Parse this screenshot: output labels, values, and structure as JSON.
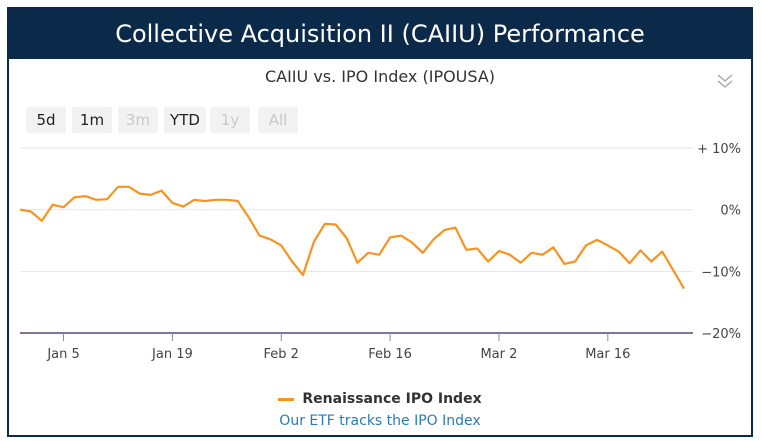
{
  "header": {
    "title": "Collective Acquisition II (CAIIU) Performance"
  },
  "range_buttons": [
    {
      "label": "5d",
      "enabled": true
    },
    {
      "label": "1m",
      "enabled": true
    },
    {
      "label": "3m",
      "enabled": false
    },
    {
      "label": "YTD",
      "enabled": true
    },
    {
      "label": "1y",
      "enabled": false
    },
    {
      "label": "All",
      "enabled": false
    }
  ],
  "icons": {
    "menu": "chevron-double-down-icon"
  },
  "colors": {
    "header_bg": "#0b2a4a",
    "series": "#f7931e",
    "link": "#2a7ab8",
    "baseline": "#3b1f5a"
  },
  "footer": {
    "link_text": "Our ETF tracks the IPO Index"
  },
  "chart_data": {
    "type": "line",
    "title": "CAIIU vs. IPO Index (IPOUSA)",
    "xlabel": "",
    "ylabel": "",
    "y_ticks": [
      10,
      0,
      -10,
      -20
    ],
    "y_tick_labels": [
      "+ 10%",
      "0%",
      "−10%",
      "−20%"
    ],
    "ylim": [
      -20,
      10
    ],
    "x_ticks": [
      {
        "label": "Jan 5",
        "index": 4
      },
      {
        "label": "Jan 19",
        "index": 14
      },
      {
        "label": "Feb 2",
        "index": 24
      },
      {
        "label": "Feb 16",
        "index": 34
      },
      {
        "label": "Mar 2",
        "index": 44
      },
      {
        "label": "Mar 16",
        "index": 54
      }
    ],
    "legend": {
      "position": "bottom-center",
      "entries": [
        "Renaissance IPO Index"
      ]
    },
    "series": [
      {
        "name": "Renaissance IPO Index",
        "values": [
          0,
          -0.3,
          -1.8,
          0.8,
          0.4,
          2.0,
          2.2,
          1.6,
          1.7,
          3.7,
          3.7,
          2.6,
          2.4,
          3.1,
          1.1,
          0.5,
          1.6,
          1.4,
          1.6,
          1.6,
          1.4,
          -1.2,
          -4.2,
          -4.8,
          -5.8,
          -8.4,
          -10.6,
          -5.2,
          -2.3,
          -2.4,
          -4.6,
          -8.6,
          -7.0,
          -7.3,
          -4.5,
          -4.2,
          -5.3,
          -7.0,
          -4.8,
          -3.3,
          -2.9,
          -6.5,
          -6.3,
          -8.4,
          -6.7,
          -7.3,
          -8.6,
          -7.0,
          -7.3,
          -6.1,
          -8.8,
          -8.4,
          -5.8,
          -4.9,
          -5.8,
          -6.8,
          -8.7,
          -6.6,
          -8.4,
          -6.8,
          -9.8,
          -12.8
        ]
      }
    ]
  }
}
